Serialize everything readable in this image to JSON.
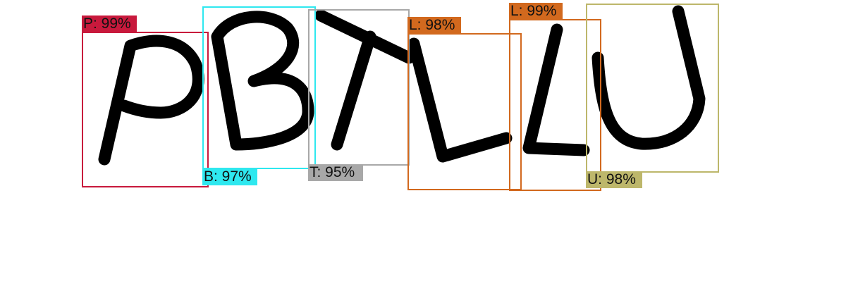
{
  "detections": [
    {
      "label": "P: 99%",
      "color": "#c8193c"
    },
    {
      "label": "B: 97%",
      "color": "#2ee8ef"
    },
    {
      "label": "T: 95%",
      "color": "#a8a8a8"
    },
    {
      "label": "L: 98%",
      "color": "#d2691e"
    },
    {
      "label": "L: 99%",
      "color": "#d2691e"
    },
    {
      "label": "U: 98%",
      "color": "#bdb76b"
    }
  ]
}
